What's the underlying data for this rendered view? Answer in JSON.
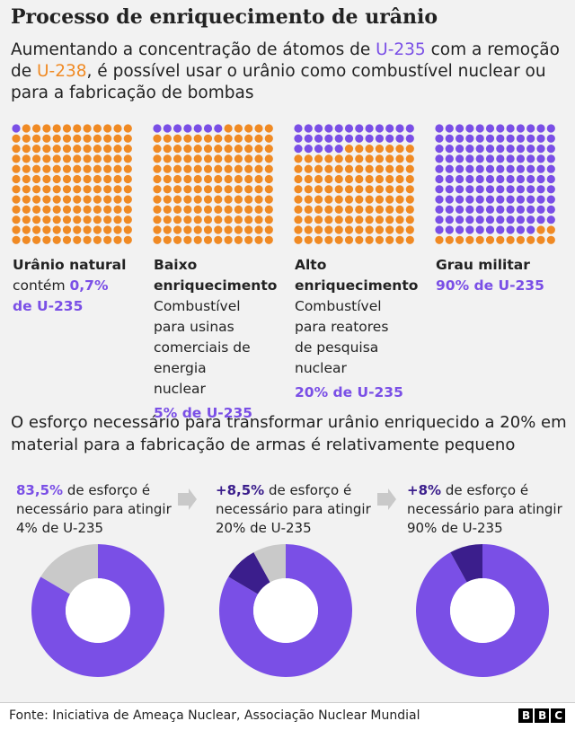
{
  "header": {
    "title": "Processo de enriquecimento de urânio",
    "subtitle": [
      {
        "text": "Aumentando a concentração de átomos de "
      },
      {
        "text": "U-235",
        "color": "#7a4fe6"
      },
      {
        "text": " com a remoção de "
      },
      {
        "text": "U-238",
        "color": "#f08a24"
      },
      {
        "text": ", é possível usar o urânio como combustível nuclear ou para a fabricação de bombas"
      }
    ]
  },
  "waffles": {
    "type": "waffle",
    "colors": {
      "u235": "#7a4fe6",
      "u238": "#f08a24"
    },
    "items": [
      {
        "title": "Urânio natural",
        "description": "contém",
        "percent_label": "0,7% de U-235",
        "percent": 0.7
      },
      {
        "title": "Baixo enriquecimento",
        "description": "Combustível para usinas comerciais de energia nuclear",
        "percent_label": "5% de U-235",
        "percent": 5
      },
      {
        "title": "Alto enriquecimento",
        "description": "Combustível para reatores de pesquisa nuclear",
        "percent_label": "20% de U-235",
        "percent": 20
      },
      {
        "title": "Grau militar",
        "percent_label": "90% de U-235",
        "percent": 90
      }
    ]
  },
  "effort": {
    "type": "donut",
    "text": "O esforço necessário para transformar urânio enriquecido a 20% em material para a fabricação de armas é relativamente pequeno",
    "items": [
      {
        "highlight": "83,5%",
        "highlight_color": "#7a4fe6",
        "text": " de esforço é necessário para atingir 4% de U-235",
        "segments": [
          {
            "value": 83.5,
            "color": "#7a4fe6"
          },
          {
            "value": 16.5,
            "color": "#c9c9c9"
          }
        ]
      },
      {
        "highlight": "+8,5%",
        "highlight_color": "#3b1e8c",
        "text": " de esforço é necessário para atingir 20% de U-235",
        "segments": [
          {
            "value": 83.5,
            "color": "#7a4fe6"
          },
          {
            "value": 8.5,
            "color": "#3b1e8c"
          },
          {
            "value": 8,
            "color": "#c9c9c9"
          }
        ]
      },
      {
        "highlight": "+8%",
        "highlight_color": "#3b1e8c",
        "text": " de esforço é necessário para atingir 90% de U-235",
        "segments": [
          {
            "value": 92,
            "color": "#7a4fe6"
          },
          {
            "value": 8,
            "color": "#3b1e8c"
          }
        ]
      }
    ]
  },
  "footer": {
    "source": "Fonte: Iniciativa de Ameaça Nuclear, Associação Nuclear Mundial",
    "logo": "BBC"
  }
}
